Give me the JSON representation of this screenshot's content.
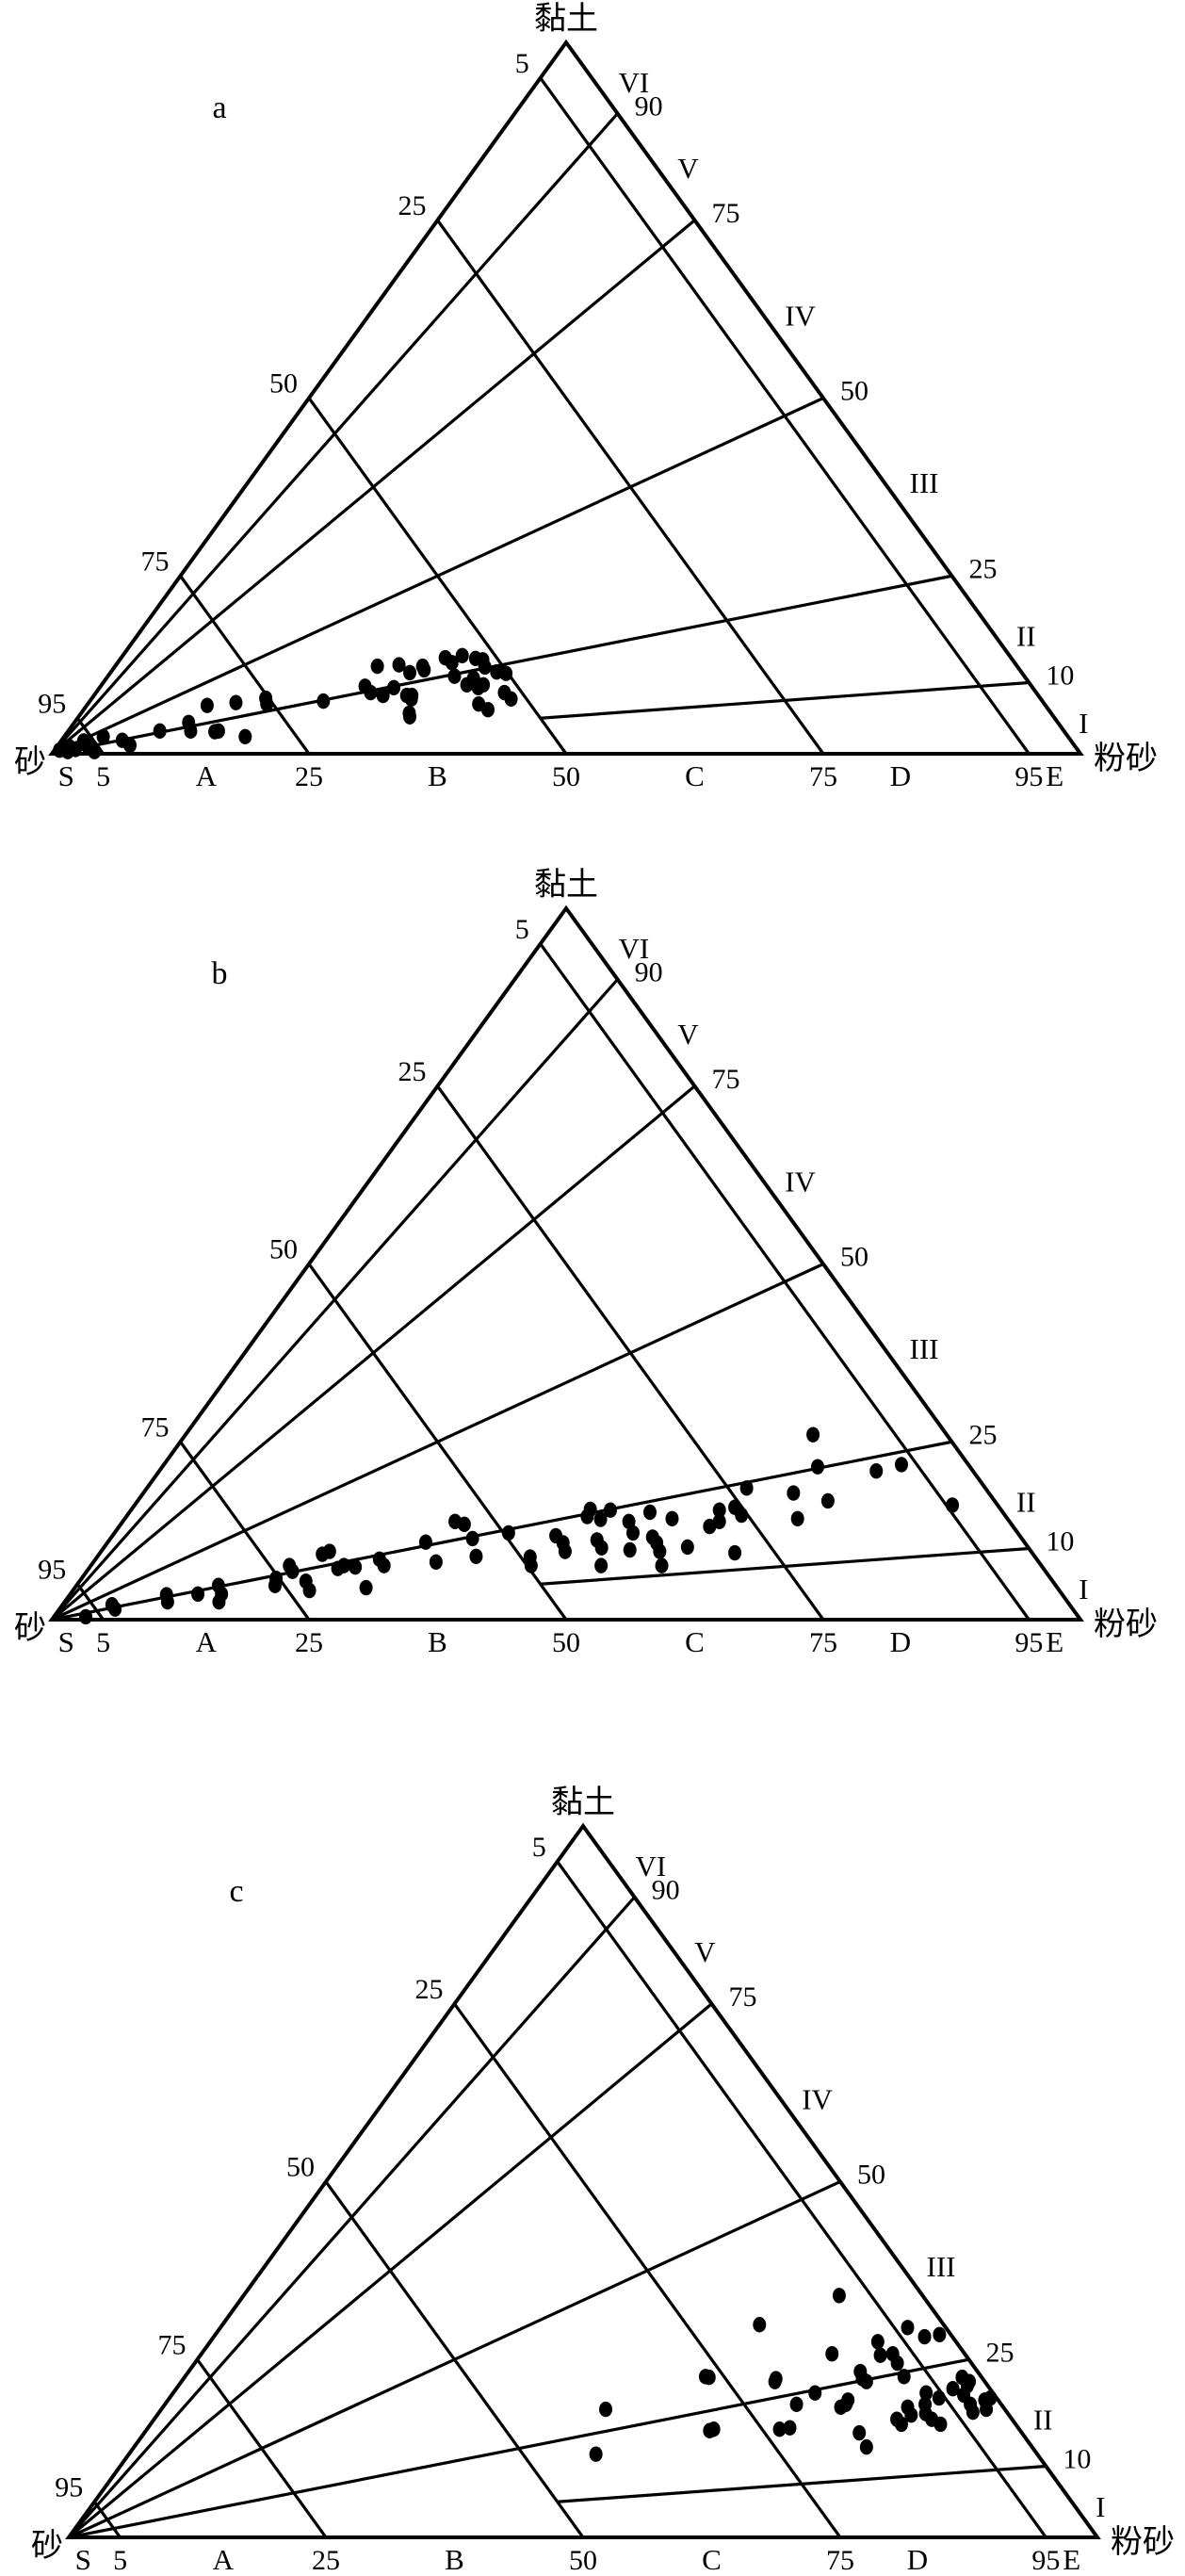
{
  "figure": {
    "description_visible_text_only": true,
    "panels": [
      "a",
      "b",
      "c"
    ]
  },
  "chart_data": [
    {
      "type": "scatter",
      "subtype": "ternary-sand-silt-clay",
      "panel": "a",
      "top_label": "黏土",
      "left_label": "砂",
      "right_label": "粉砂",
      "left_ticks": [
        5,
        25,
        50,
        75,
        95
      ],
      "right_ticks": [
        90,
        75,
        50,
        25,
        10
      ],
      "bottom_ticks": [
        5,
        25,
        50,
        75,
        95
      ],
      "bottom_zones": [
        "S",
        "A",
        "B",
        "C",
        "D",
        "E"
      ],
      "roman_zones": [
        "VI",
        "V",
        "IV",
        "III",
        "II",
        "I"
      ],
      "sand_gridlines": [
        5,
        25,
        50,
        75,
        95
      ],
      "clay_ratio_gridlines": [
        90,
        75,
        50,
        25,
        10
      ],
      "point_format": "[silt_pct, clay_pct]; sand = 100 - silt - clay",
      "points": [
        [
          0.5,
          0.5
        ],
        [
          1.2,
          1
        ],
        [
          2,
          0.6
        ],
        [
          2.8,
          1.2
        ],
        [
          4,
          0.3
        ],
        [
          2.2,
          1.8
        ],
        [
          1.4,
          0.3
        ],
        [
          3.2,
          0.8
        ],
        [
          3.8,
          2.4
        ],
        [
          5.9,
          1.9
        ],
        [
          7,
          1.2
        ],
        [
          8.9,
          3.2
        ],
        [
          11.1,
          4.4
        ],
        [
          11.9,
          3.2
        ],
        [
          11.7,
          6.8
        ],
        [
          14.3,
          3.1
        ],
        [
          14.6,
          3.2
        ],
        [
          17.6,
          2.4
        ],
        [
          14.3,
          7.2
        ],
        [
          16.9,
          7.8
        ],
        [
          17.4,
          7
        ],
        [
          22.7,
          7.4
        ],
        [
          25.7,
          9.5
        ],
        [
          26.7,
          8.6
        ],
        [
          28.6,
          9.3
        ],
        [
          30.4,
          8.2
        ],
        [
          28.1,
          8.2
        ],
        [
          25.5,
          12.3
        ],
        [
          27.5,
          12.5
        ],
        [
          29.1,
          11.4
        ],
        [
          30.3,
          11.8
        ],
        [
          35.5,
          9.7
        ],
        [
          39.7,
          8.6
        ],
        [
          38,
          7
        ],
        [
          31.1,
          7.7
        ],
        [
          32.2,
          5.2
        ],
        [
          29.9,
          12.3
        ],
        [
          32.5,
          12.8
        ],
        [
          33.7,
          10.9
        ],
        [
          35.3,
          13.2
        ],
        [
          37.1,
          9.7
        ],
        [
          35.7,
          10.6
        ],
        [
          38.5,
          11.3
        ],
        [
          40.8,
          7.7
        ],
        [
          39.3,
          6.2
        ],
        [
          30.9,
          8.2
        ],
        [
          31.9,
          5.7
        ],
        [
          36.8,
          9.3
        ],
        [
          31.5,
          13.5
        ],
        [
          33,
          13.8
        ],
        [
          34.5,
          13.4
        ],
        [
          36,
          12.2
        ],
        [
          37.5,
          11.5
        ]
      ]
    },
    {
      "type": "scatter",
      "subtype": "ternary-sand-silt-clay",
      "panel": "b",
      "top_label": "黏土",
      "left_label": "砂",
      "right_label": "粉砂",
      "left_ticks": [
        5,
        25,
        50,
        75,
        95
      ],
      "right_ticks": [
        90,
        75,
        50,
        25,
        10
      ],
      "bottom_ticks": [
        5,
        25,
        50,
        75,
        95
      ],
      "bottom_zones": [
        "S",
        "A",
        "B",
        "C",
        "D",
        "E"
      ],
      "roman_zones": [
        "VI",
        "V",
        "IV",
        "III",
        "II",
        "I"
      ],
      "sand_gridlines": [
        5,
        25,
        50,
        75,
        95
      ],
      "clay_ratio_gridlines": [
        90,
        75,
        50,
        25,
        10
      ],
      "point_format": "[silt_pct, clay_pct]; sand = 100 - silt - clay",
      "points": [
        [
          3.1,
          0.4
        ],
        [
          5.4,
          1.5
        ],
        [
          4.8,
          2.1
        ],
        [
          9.4,
          3.5
        ],
        [
          10,
          2.5
        ],
        [
          12.4,
          3.6
        ],
        [
          13.8,
          4.8
        ],
        [
          15,
          2.5
        ],
        [
          14.7,
          3.6
        ],
        [
          18.9,
          5.8
        ],
        [
          19.3,
          4.8
        ],
        [
          19.3,
          7.6
        ],
        [
          20,
          6.8
        ],
        [
          22,
          5.4
        ],
        [
          23,
          4.1
        ],
        [
          21.7,
          9.2
        ],
        [
          22.2,
          9.6
        ],
        [
          24.2,
          7.2
        ],
        [
          24.6,
          7.6
        ],
        [
          25.8,
          7.4
        ],
        [
          27.6,
          8.5
        ],
        [
          28.5,
          7.6
        ],
        [
          28.3,
          4.5
        ],
        [
          30.9,
          10.9
        ],
        [
          33.3,
          8.1
        ],
        [
          32.3,
          13.8
        ],
        [
          33.4,
          13.4
        ],
        [
          35.2,
          11.4
        ],
        [
          36.8,
          8.9
        ],
        [
          38.3,
          12.2
        ],
        [
          42.1,
          8.8
        ],
        [
          42.8,
          7.6
        ],
        [
          43.1,
          11.8
        ],
        [
          44.3,
          10.8
        ],
        [
          45.1,
          9.6
        ],
        [
          44.8,
          14.5
        ],
        [
          47.4,
          11.2
        ],
        [
          46.3,
          14.1
        ],
        [
          48.4,
          10.1
        ],
        [
          49.6,
          7.6
        ],
        [
          49.2,
          13.8
        ],
        [
          50.4,
          12.2
        ],
        [
          51.3,
          9.8
        ],
        [
          50.6,
          15.1
        ],
        [
          52.6,
          11.6
        ],
        [
          53.4,
          10.8
        ],
        [
          54.3,
          9.6
        ],
        [
          55.5,
          7.6
        ],
        [
          53.2,
          14.2
        ],
        [
          56.7,
          10.2
        ],
        [
          57.4,
          13.1
        ],
        [
          58,
          13.8
        ],
        [
          61.7,
          9.4
        ],
        [
          57.2,
          15.4
        ],
        [
          59.7,
          14.7
        ],
        [
          44.6,
          15.5
        ],
        [
          46.6,
          15.4
        ],
        [
          58.3,
          18.5
        ],
        [
          63.7,
          21.5
        ],
        [
          69.7,
          20.9
        ],
        [
          71.7,
          21.8
        ],
        [
          63.2,
          17.8
        ],
        [
          67.1,
          16.7
        ],
        [
          65.4,
          14.2
        ],
        [
          58.5,
          15.8
        ],
        [
          79.5,
          16.1
        ],
        [
          61,
          26
        ]
      ]
    },
    {
      "type": "scatter",
      "subtype": "ternary-sand-silt-clay",
      "panel": "c",
      "top_label": "黏土",
      "left_label": "砂",
      "right_label": "粉砂",
      "left_ticks": [
        5,
        25,
        50,
        75,
        95
      ],
      "right_ticks": [
        90,
        75,
        50,
        25,
        10
      ],
      "bottom_ticks": [
        5,
        25,
        50,
        75,
        95
      ],
      "bottom_zones": [
        "S",
        "A",
        "B",
        "C",
        "D",
        "E"
      ],
      "roman_zones": [
        "VI",
        "V",
        "IV",
        "III",
        "II",
        "I"
      ],
      "sand_gridlines": [
        5,
        25,
        50,
        75,
        95
      ],
      "clay_ratio_gridlines": [
        90,
        75,
        50,
        25,
        10
      ],
      "point_format": "[silt_pct, clay_pct]; sand = 100 - silt - clay",
      "points": [
        [
          66.2,
          18.7
        ],
        [
          66.1,
          19.3
        ],
        [
          65.9,
          18.3
        ],
        [
          69.5,
          14.7
        ],
        [
          71.2,
          12.7
        ],
        [
          72.2,
          16.6
        ],
        [
          73,
          15.9
        ],
        [
          72.4,
          18.3
        ],
        [
          73.3,
          17.2
        ],
        [
          73.9,
          18.7
        ],
        [
          74.6,
          17.4
        ],
        [
          75.6,
          16.6
        ],
        [
          76.8,
          15.9
        ],
        [
          73.2,
          20.3
        ],
        [
          74.8,
          19.6
        ],
        [
          75.5,
          20.9
        ],
        [
          77,
          20
        ],
        [
          76.7,
          21.3
        ],
        [
          78.3,
          18.7
        ],
        [
          79.1,
          17.6
        ],
        [
          79.4,
          19.3
        ],
        [
          80.2,
          18
        ],
        [
          79.8,
          19.6
        ],
        [
          66,
          22.3
        ],
        [
          69.9,
          22.6
        ],
        [
          75.6,
          22.5
        ],
        [
          76.6,
          21.9
        ],
        [
          50.6,
          22.6
        ],
        [
          52.2,
          29.9
        ],
        [
          57.9,
          34
        ],
        [
          64.9,
          27.5
        ],
        [
          66.1,
          25.6
        ],
        [
          67.2,
          25.8
        ],
        [
          68.3,
          24.5
        ],
        [
          66.8,
          29.5
        ],
        [
          69.1,
          28.2
        ],
        [
          70.4,
          28.5
        ],
        [
          65.3,
          23.3
        ],
        [
          66.6,
          21.9
        ],
        [
          61.3,
          25.8
        ],
        [
          57.6,
          22.3
        ],
        [
          43.2,
          18
        ],
        [
          45.4,
          11.7
        ],
        [
          51,
          22.5
        ],
        [
          54.8,
          15
        ],
        [
          55.1,
          15.2
        ],
        [
          57.7,
          21.9
        ],
        [
          61.5,
          15.2
        ],
        [
          62.4,
          15.4
        ],
        [
          61.4,
          18.7
        ],
        [
          62.4,
          20.3
        ]
      ]
    }
  ]
}
